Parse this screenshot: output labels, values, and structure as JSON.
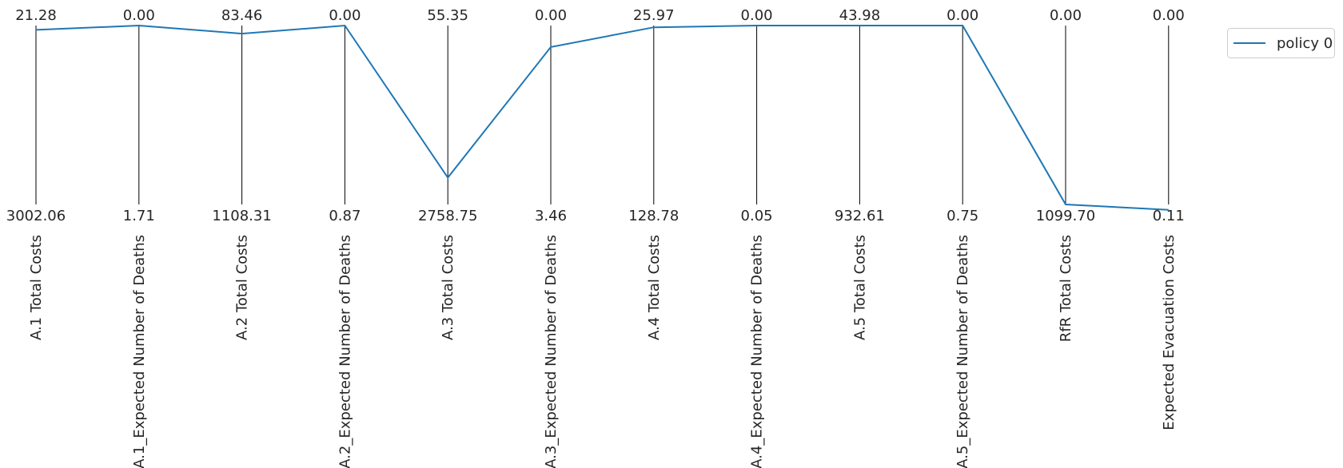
{
  "chart_data": {
    "type": "parallel_coordinates",
    "axes": [
      {
        "label": "A.1 Total Costs",
        "max": "21.28",
        "min": "3002.06"
      },
      {
        "label": "A.1_Expected Number of Deaths",
        "max": "0.00",
        "min": "1.71"
      },
      {
        "label": "A.2 Total Costs",
        "max": "83.46",
        "min": "1108.31"
      },
      {
        "label": "A.2_Expected Number of Deaths",
        "max": "0.00",
        "min": "0.87"
      },
      {
        "label": "A.3 Total Costs",
        "max": "55.35",
        "min": "2758.75"
      },
      {
        "label": "A.3_Expected Number of Deaths",
        "max": "0.00",
        "min": "3.46"
      },
      {
        "label": "A.4 Total Costs",
        "max": "25.97",
        "min": "128.78"
      },
      {
        "label": "A.4_Expected Number of Deaths",
        "max": "0.00",
        "min": "0.05"
      },
      {
        "label": "A.5 Total Costs",
        "max": "43.98",
        "min": "932.61"
      },
      {
        "label": "A.5_Expected Number of Deaths",
        "max": "0.00",
        "min": "0.75"
      },
      {
        "label": "RfR Total Costs",
        "max": "0.00",
        "min": "1099.70"
      },
      {
        "label": "Expected Evacuation Costs",
        "max": "0.00",
        "min": "0.11"
      }
    ],
    "series": [
      {
        "name": "policy 0",
        "color": "#1f77b4",
        "normalized_values": [
          0.976,
          1.0,
          0.955,
          1.0,
          0.15,
          0.88,
          0.99,
          1.0,
          1.0,
          1.0,
          0.0,
          -0.03
        ]
      }
    ],
    "legend_position": "top-right",
    "grid": false
  }
}
